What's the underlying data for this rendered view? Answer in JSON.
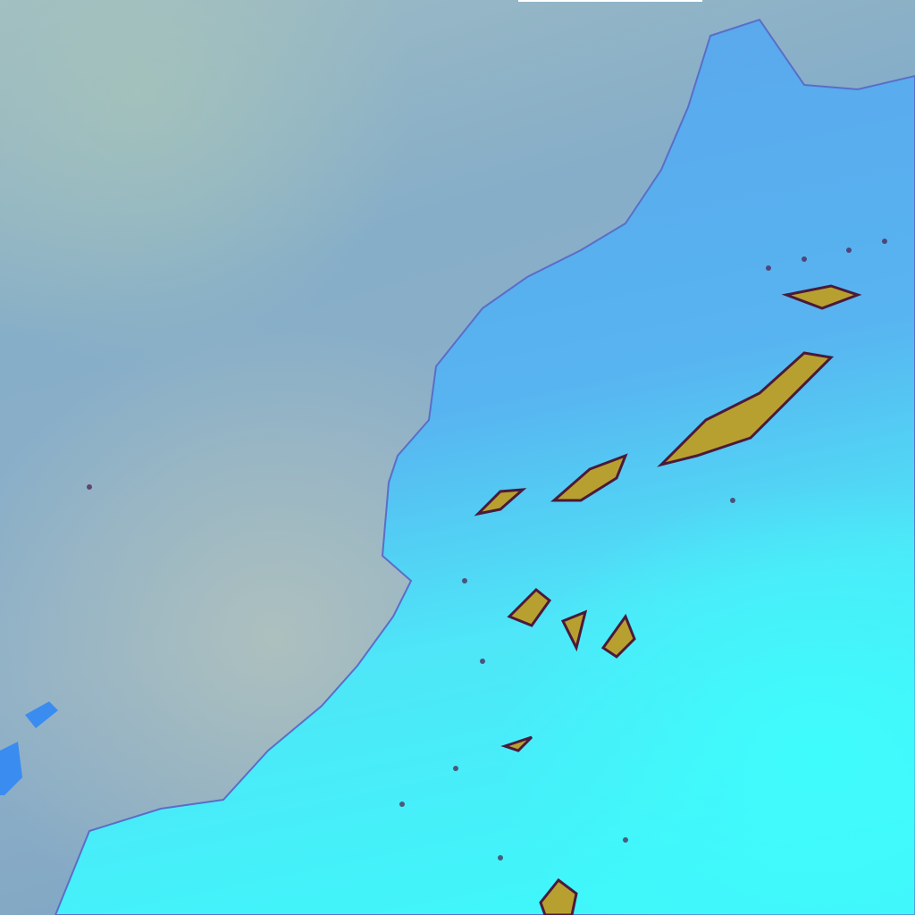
{
  "image": {
    "kind": "false-color satellite imagery",
    "colors": {
      "ocean": "#86adc6",
      "ocean_haze": "#a9bfc0",
      "land_north": "#5aa8ee",
      "land_south": "#3ff4f8",
      "mountains": "#b8a030",
      "mountain_shadow": "#4a1a3a"
    }
  }
}
